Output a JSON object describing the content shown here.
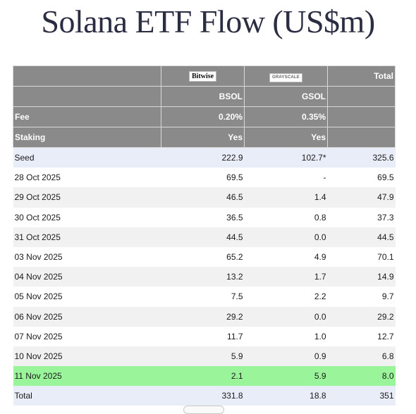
{
  "title": "Solana ETF Flow (US$m)",
  "issuers": {
    "bitwise": "Bitwise",
    "grayscale": "GRAYSCALE",
    "total": "Total"
  },
  "tickers": {
    "col1": "BSOL",
    "col2": "GSOL"
  },
  "fee": {
    "label": "Fee",
    "col1": "0.20%",
    "col2": "0.35%"
  },
  "staking": {
    "label": "Staking",
    "col1": "Yes",
    "col2": "Yes"
  },
  "rows": [
    {
      "date": "Seed",
      "bsol": "222.9",
      "gsol": "102.7*",
      "total": "325.6"
    },
    {
      "date": "28 Oct 2025",
      "bsol": "69.5",
      "gsol": "-",
      "total": "69.5"
    },
    {
      "date": "29 Oct 2025",
      "bsol": "46.5",
      "gsol": "1.4",
      "total": "47.9"
    },
    {
      "date": "30 Oct 2025",
      "bsol": "36.5",
      "gsol": "0.8",
      "total": "37.3"
    },
    {
      "date": "31 Oct 2025",
      "bsol": "44.5",
      "gsol": "0.0",
      "total": "44.5"
    },
    {
      "date": "03 Nov 2025",
      "bsol": "65.2",
      "gsol": "4.9",
      "total": "70.1"
    },
    {
      "date": "04 Nov 2025",
      "bsol": "13.2",
      "gsol": "1.7",
      "total": "14.9"
    },
    {
      "date": "05 Nov 2025",
      "bsol": "7.5",
      "gsol": "2.2",
      "total": "9.7"
    },
    {
      "date": "06 Nov 2025",
      "bsol": "29.2",
      "gsol": "0.0",
      "total": "29.2"
    },
    {
      "date": "07 Nov 2025",
      "bsol": "11.7",
      "gsol": "1.0",
      "total": "12.7"
    },
    {
      "date": "10 Nov 2025",
      "bsol": "5.9",
      "gsol": "0.9",
      "total": "6.8"
    },
    {
      "date": "11 Nov 2025",
      "bsol": "2.1",
      "gsol": "5.9",
      "total": "8.0"
    }
  ],
  "total_row": {
    "label": "Total",
    "bsol": "331.8",
    "gsol": "18.8",
    "total": "351"
  },
  "colors": {
    "header_bg": "#8a8a8a",
    "highlight": "#9af59a",
    "seed_total_bg": "#e9edf7",
    "title": "#2b2d42"
  }
}
